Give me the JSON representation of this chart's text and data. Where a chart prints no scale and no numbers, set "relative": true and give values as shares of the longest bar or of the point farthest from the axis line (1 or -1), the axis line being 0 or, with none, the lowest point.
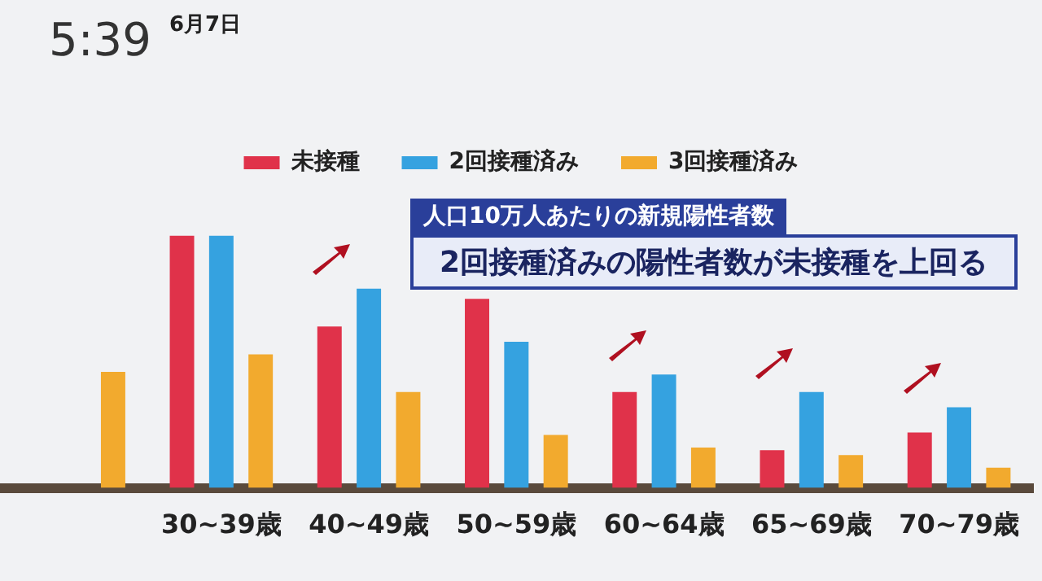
{
  "chart_data": {
    "type": "bar",
    "title": "人口10万人あたりの新規陽性者数",
    "subtitle": "2回接種済みの陽性者数が未接種を上回る",
    "annotations": [
      "5:39",
      "6月7日"
    ],
    "relative": true,
    "legend": "top",
    "grid": false,
    "categories": [
      null,
      "30~39歳",
      "40~49歳",
      "50~59歳",
      "60~64歳",
      "65~69歳",
      "70~79歳"
    ],
    "series": [
      {
        "name": "未接種",
        "color": "#e0324a",
        "values": [
          null,
          1,
          0.64,
          0.75,
          0.38,
          0.15,
          0.22
        ]
      },
      {
        "name": "2回接種済み",
        "color": "#35a2e0",
        "values": [
          null,
          1,
          0.79,
          0.58,
          0.45,
          0.38,
          0.32
        ]
      },
      {
        "name": "3回接種済み",
        "color": "#f2aa2e",
        "values": [
          0.46,
          0.53,
          0.38,
          0.21,
          0.16,
          0.13,
          0.08
        ]
      }
    ]
  }
}
